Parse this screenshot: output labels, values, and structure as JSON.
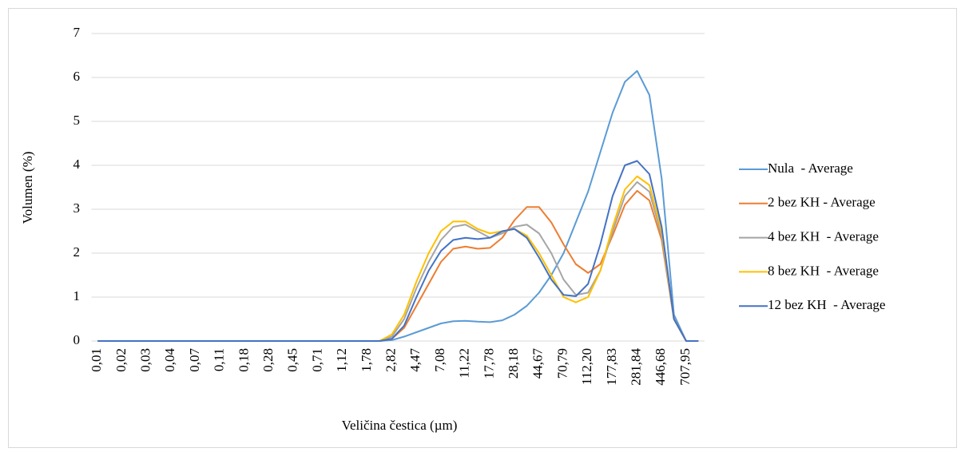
{
  "chart_data": {
    "type": "line",
    "xlabel": "Veličina čestica (µm)",
    "ylabel": "Volumen (%)",
    "categories": [
      "0,01",
      null,
      "0,02",
      null,
      "0,03",
      null,
      "0,04",
      null,
      "0,07",
      null,
      "0,11",
      null,
      "0,18",
      null,
      "0,28",
      null,
      "0,45",
      null,
      "0,71",
      null,
      "1,12",
      null,
      "1,78",
      null,
      "2,82",
      null,
      "4,47",
      null,
      "7,08",
      null,
      "11,22",
      null,
      "17,78",
      null,
      "28,18",
      null,
      "44,67",
      null,
      "70,79",
      null,
      "112,20",
      null,
      "177,83",
      null,
      "281,84",
      null,
      "446,68",
      null,
      "707,95",
      null
    ],
    "series": [
      {
        "name": "Nula  - Average",
        "color": "#5b9bd5",
        "values": [
          0,
          0,
          0,
          0,
          0,
          0,
          0,
          0,
          0,
          0,
          0,
          0,
          0,
          0,
          0,
          0,
          0,
          0,
          0,
          0,
          0,
          0,
          0,
          0,
          0.02,
          0.1,
          0.2,
          0.3,
          0.4,
          0.45,
          0.46,
          0.44,
          0.43,
          0.47,
          0.6,
          0.8,
          1.1,
          1.5,
          2.0,
          2.7,
          3.4,
          4.3,
          5.2,
          5.9,
          6.15,
          5.6,
          3.7,
          0.6,
          0,
          0
        ]
      },
      {
        "name": "2 bez KH - Average",
        "color": "#ed7d31",
        "values": [
          0,
          0,
          0,
          0,
          0,
          0,
          0,
          0,
          0,
          0,
          0,
          0,
          0,
          0,
          0,
          0,
          0,
          0,
          0,
          0,
          0,
          0,
          0,
          0,
          0.05,
          0.3,
          0.8,
          1.3,
          1.8,
          2.1,
          2.15,
          2.1,
          2.12,
          2.35,
          2.75,
          3.05,
          3.05,
          2.7,
          2.2,
          1.75,
          1.55,
          1.75,
          2.4,
          3.1,
          3.42,
          3.2,
          2.3,
          0.5,
          0,
          0
        ]
      },
      {
        "name": "4 bez KH  - Average",
        "color": "#a5a5a5",
        "values": [
          0,
          0,
          0,
          0,
          0,
          0,
          0,
          0,
          0,
          0,
          0,
          0,
          0,
          0,
          0,
          0,
          0,
          0,
          0,
          0,
          0,
          0,
          0,
          0,
          0.1,
          0.5,
          1.2,
          1.8,
          2.3,
          2.6,
          2.65,
          2.5,
          2.35,
          2.45,
          2.6,
          2.65,
          2.45,
          2.0,
          1.4,
          1.05,
          1.1,
          1.6,
          2.5,
          3.3,
          3.62,
          3.4,
          2.4,
          0.5,
          0,
          0
        ]
      },
      {
        "name": "8 bez KH  - Average",
        "color": "#ffc000",
        "values": [
          0,
          0,
          0,
          0,
          0,
          0,
          0,
          0,
          0,
          0,
          0,
          0,
          0,
          0,
          0,
          0,
          0,
          0,
          0,
          0,
          0,
          0,
          0,
          0,
          0.15,
          0.6,
          1.35,
          2.0,
          2.5,
          2.72,
          2.72,
          2.55,
          2.45,
          2.5,
          2.55,
          2.4,
          2.0,
          1.5,
          1.0,
          0.88,
          1.0,
          1.6,
          2.6,
          3.45,
          3.75,
          3.55,
          2.5,
          0.5,
          0,
          0
        ]
      },
      {
        "name": "12 bez KH  - Average",
        "color": "#4472c4",
        "values": [
          0,
          0,
          0,
          0,
          0,
          0,
          0,
          0,
          0,
          0,
          0,
          0,
          0,
          0,
          0,
          0,
          0,
          0,
          0,
          0,
          0,
          0,
          0,
          0,
          0.05,
          0.35,
          1.0,
          1.6,
          2.05,
          2.3,
          2.35,
          2.32,
          2.35,
          2.5,
          2.55,
          2.35,
          1.9,
          1.4,
          1.05,
          1.02,
          1.3,
          2.2,
          3.3,
          4.0,
          4.1,
          3.8,
          2.6,
          0.5,
          0,
          0
        ]
      }
    ],
    "ylim": [
      0,
      7
    ],
    "yticks": [
      0,
      1,
      2,
      3,
      4,
      5,
      6,
      7
    ],
    "grid": true,
    "legend": "right"
  }
}
